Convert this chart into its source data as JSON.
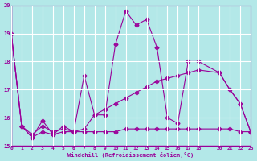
{
  "xlabel": "Windchill (Refroidissement éolien,°C)",
  "bg_color": "#b3e8e8",
  "grid_color": "#ffffff",
  "line_color": "#990099",
  "xlim": [
    0,
    23
  ],
  "ylim": [
    15,
    20
  ],
  "yticks": [
    15,
    16,
    17,
    18,
    19,
    20
  ],
  "xticks": [
    0,
    1,
    2,
    3,
    4,
    5,
    6,
    7,
    8,
    9,
    10,
    11,
    12,
    13,
    14,
    15,
    16,
    17,
    18,
    20,
    21,
    22,
    23
  ],
  "series1": [
    [
      0,
      19.0
    ],
    [
      1,
      15.7
    ],
    [
      2,
      15.3
    ],
    [
      3,
      15.9
    ],
    [
      4,
      15.4
    ],
    [
      5,
      15.7
    ],
    [
      6,
      15.5
    ],
    [
      7,
      17.5
    ],
    [
      8,
      16.1
    ],
    [
      9,
      16.1
    ],
    [
      10,
      18.6
    ],
    [
      11,
      19.8
    ],
    [
      12,
      19.3
    ],
    [
      13,
      19.5
    ],
    [
      14,
      18.5
    ],
    [
      15,
      16.0
    ],
    [
      16,
      15.8
    ],
    [
      17,
      18.0
    ],
    [
      18,
      18.0
    ],
    [
      20,
      17.6
    ],
    [
      21,
      17.0
    ],
    [
      22,
      16.5
    ],
    [
      23,
      15.5
    ]
  ],
  "series2": [
    [
      0,
      19.0
    ],
    [
      1,
      15.7
    ],
    [
      2,
      15.4
    ],
    [
      3,
      15.7
    ],
    [
      4,
      15.5
    ],
    [
      5,
      15.6
    ],
    [
      6,
      15.5
    ],
    [
      7,
      15.6
    ],
    [
      8,
      16.1
    ],
    [
      9,
      16.3
    ],
    [
      10,
      16.5
    ],
    [
      11,
      16.7
    ],
    [
      12,
      16.9
    ],
    [
      13,
      17.1
    ],
    [
      14,
      17.3
    ],
    [
      15,
      17.4
    ],
    [
      16,
      17.5
    ],
    [
      17,
      17.6
    ],
    [
      18,
      17.7
    ],
    [
      20,
      17.6
    ],
    [
      21,
      17.0
    ],
    [
      22,
      16.5
    ],
    [
      23,
      15.5
    ]
  ],
  "series3": [
    [
      0,
      19.0
    ],
    [
      1,
      15.7
    ],
    [
      2,
      15.3
    ],
    [
      3,
      15.5
    ],
    [
      4,
      15.4
    ],
    [
      5,
      15.5
    ],
    [
      6,
      15.5
    ],
    [
      7,
      15.5
    ],
    [
      8,
      15.5
    ],
    [
      9,
      15.5
    ],
    [
      10,
      15.5
    ],
    [
      11,
      15.6
    ],
    [
      12,
      15.6
    ],
    [
      13,
      15.6
    ],
    [
      14,
      15.6
    ],
    [
      15,
      15.6
    ],
    [
      16,
      15.6
    ],
    [
      17,
      15.6
    ],
    [
      18,
      15.6
    ],
    [
      20,
      15.6
    ],
    [
      21,
      15.6
    ],
    [
      22,
      15.5
    ],
    [
      23,
      15.5
    ]
  ]
}
